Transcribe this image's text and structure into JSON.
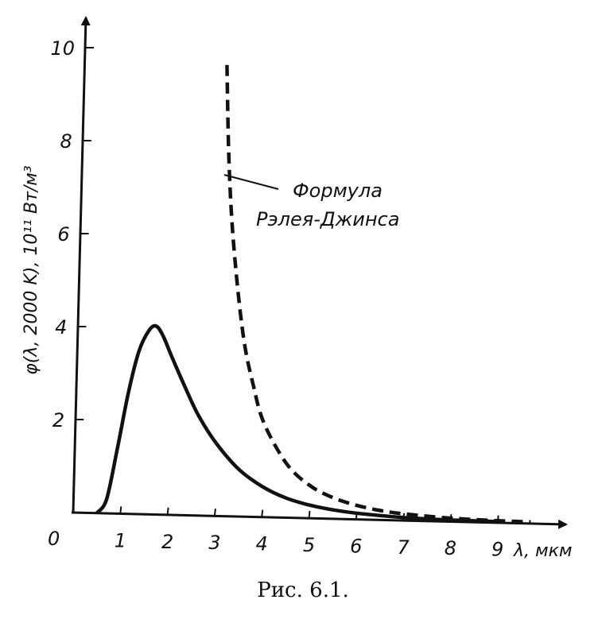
{
  "chart_data": {
    "type": "line",
    "xlabel": "λ, мкм",
    "ylabel": "φ(λ, 2000 K), 10¹¹ Вт/м³",
    "xlim": [
      0,
      10.5
    ],
    "ylim": [
      0,
      10.3
    ],
    "x_ticks": [
      0,
      1,
      2,
      3,
      4,
      5,
      6,
      7,
      8,
      9
    ],
    "y_ticks": [
      2,
      4,
      6,
      8,
      10
    ],
    "origin_label": "0",
    "grid": false,
    "series": [
      {
        "style": "solid",
        "x": [
          0.5,
          0.7,
          0.9,
          1.1,
          1.3,
          1.5,
          1.65,
          1.8,
          2.0,
          2.3,
          2.6,
          3.0,
          3.5,
          4.0,
          4.5,
          5.0,
          5.5,
          6.0,
          7.0,
          8.0,
          9.0
        ],
        "y": [
          0.0,
          0.3,
          1.4,
          2.6,
          3.5,
          3.95,
          4.05,
          3.85,
          3.4,
          2.75,
          2.15,
          1.55,
          1.0,
          0.65,
          0.42,
          0.28,
          0.19,
          0.13,
          0.06,
          0.03,
          0.02
        ]
      },
      {
        "style": "dashed",
        "annotation": "Формула Рэлея-Джинса",
        "x": [
          3.0,
          3.1,
          3.25,
          3.5,
          3.75,
          4.0,
          4.5,
          5.0,
          5.5,
          6.0,
          6.5,
          7.0,
          8.0,
          9.0,
          9.7
        ],
        "y": [
          9.7,
          7.6,
          5.8,
          3.9,
          2.8,
          2.0,
          1.15,
          0.7,
          0.45,
          0.3,
          0.2,
          0.14,
          0.07,
          0.04,
          0.03
        ]
      }
    ]
  },
  "annotation": {
    "line1": "Формула",
    "line2": "Рэлея-Джинса"
  },
  "caption": "Рис. 6.1."
}
